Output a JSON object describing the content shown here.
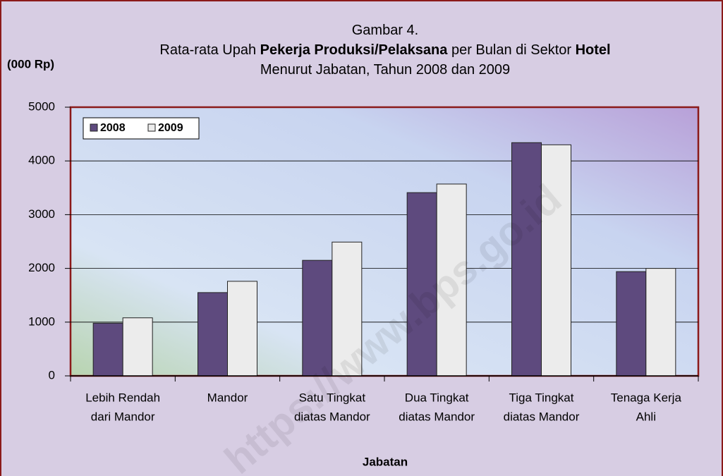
{
  "chart_data": {
    "type": "bar",
    "title_lines": [
      [
        {
          "text": "Gambar 4.",
          "bold": false
        }
      ],
      [
        {
          "text": "Rata-rata Upah ",
          "bold": false
        },
        {
          "text": "Pekerja Produksi/Pelaksana",
          "bold": true
        },
        {
          "text": " per Bulan di Sektor ",
          "bold": false
        },
        {
          "text": "Hotel",
          "bold": true
        }
      ],
      [
        {
          "text": "Menurut Jabatan, Tahun 2008 dan 2009",
          "bold": false
        }
      ]
    ],
    "y_label": "(000 Rp)",
    "x_label": "Jabatan",
    "watermark": "https://www.bps.go.id",
    "categories": [
      [
        "Lebih Rendah",
        "dari Mandor"
      ],
      [
        "Mandor"
      ],
      [
        "Satu Tingkat",
        "diatas Mandor"
      ],
      [
        "Dua Tingkat",
        "diatas Mandor"
      ],
      [
        "Tiga Tingkat",
        "diatas Mandor"
      ],
      [
        "Tenaga Kerja",
        "Ahli"
      ]
    ],
    "series": [
      {
        "name": "2008",
        "color": "#5e4a7e",
        "values": [
          980,
          1550,
          2150,
          3410,
          4340,
          1940
        ]
      },
      {
        "name": "2009",
        "color": "#ececec",
        "values": [
          1080,
          1760,
          2490,
          3570,
          4300,
          2000
        ]
      }
    ],
    "ylim": [
      0,
      5000
    ],
    "yticks": [
      0,
      1000,
      2000,
      3000,
      4000,
      5000
    ],
    "grid": true,
    "legend": "top-left"
  }
}
